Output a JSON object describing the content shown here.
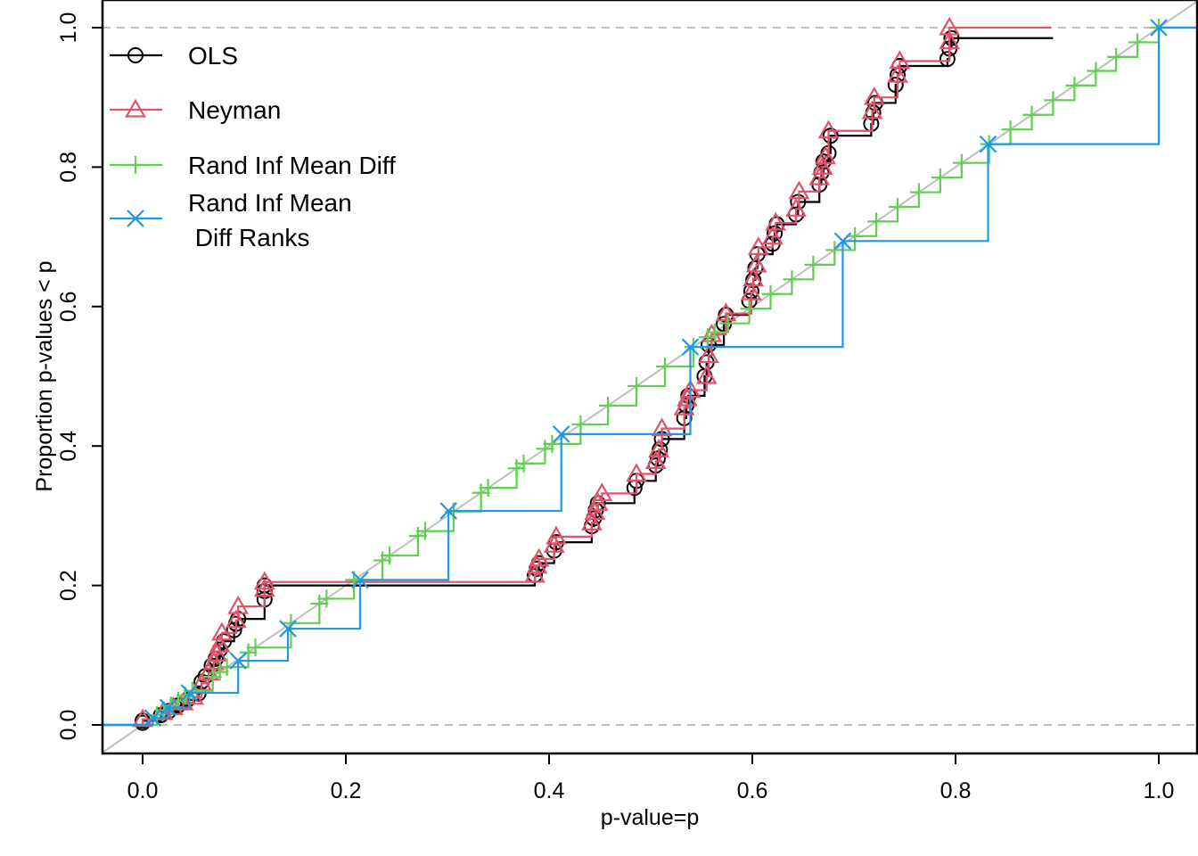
{
  "chart_data": {
    "type": "line",
    "title": "",
    "xlabel": "p-value=p",
    "ylabel": "Proportion p-values < p",
    "xlim": [
      0,
      1
    ],
    "ylim": [
      0,
      1
    ],
    "x_ticks": [
      "0.0",
      "0.2",
      "0.4",
      "0.6",
      "0.8",
      "1.0"
    ],
    "y_ticks": [
      "0.0",
      "0.2",
      "0.4",
      "0.6",
      "0.8",
      "1.0"
    ],
    "x_tick_values": [
      0,
      0.2,
      0.4,
      0.6,
      0.8,
      1.0
    ],
    "y_tick_values": [
      0,
      0.2,
      0.4,
      0.6,
      0.8,
      1.0
    ],
    "reference_lines": {
      "diagonal": {
        "from": [
          0,
          0
        ],
        "to": [
          1,
          1
        ],
        "color": "#bebebe"
      },
      "horizontal_dashed": [
        0,
        1
      ],
      "dashed_color": "#bebebe"
    },
    "legend": {
      "placement": "top-left",
      "entries": [
        {
          "label": "OLS",
          "series": "OLS"
        },
        {
          "label": "Neyman",
          "series": "Neyman"
        },
        {
          "label": "Rand Inf Mean Diff",
          "series": "Rand Inf Mean Diff"
        },
        {
          "label_lines": [
            "Rand Inf Mean",
            " Diff Ranks"
          ],
          "series": "Rand Inf Mean Diff Ranks"
        }
      ]
    },
    "series": [
      {
        "name": "OLS",
        "color": "#000000",
        "marker": "circle",
        "step": true,
        "x": [
          0.0,
          0.0,
          0.018,
          0.026,
          0.035,
          0.044,
          0.055,
          0.058,
          0.062,
          0.068,
          0.072,
          0.076,
          0.08,
          0.09,
          0.092,
          0.094,
          0.12,
          0.12,
          0.12,
          0.386,
          0.388,
          0.39,
          0.405,
          0.407,
          0.442,
          0.444,
          0.446,
          0.448,
          0.484,
          0.486,
          0.505,
          0.507,
          0.509,
          0.511,
          0.533,
          0.535,
          0.537,
          0.553,
          0.555,
          0.557,
          0.572,
          0.574,
          0.597,
          0.599,
          0.601,
          0.603,
          0.605,
          0.62,
          0.622,
          0.624,
          0.643,
          0.645,
          0.666,
          0.668,
          0.67,
          0.675,
          0.677,
          0.717,
          0.719,
          0.721,
          0.741,
          0.743,
          0.745,
          0.792,
          0.794,
          0.796
        ],
        "y": [
          0.003,
          0.006,
          0.014,
          0.02,
          0.028,
          0.036,
          0.045,
          0.062,
          0.07,
          0.085,
          0.095,
          0.108,
          0.12,
          0.136,
          0.145,
          0.152,
          0.18,
          0.192,
          0.2,
          0.215,
          0.224,
          0.232,
          0.25,
          0.262,
          0.285,
          0.296,
          0.308,
          0.318,
          0.34,
          0.35,
          0.372,
          0.382,
          0.395,
          0.41,
          0.44,
          0.458,
          0.472,
          0.5,
          0.52,
          0.545,
          0.575,
          0.588,
          0.608,
          0.622,
          0.638,
          0.655,
          0.675,
          0.69,
          0.705,
          0.718,
          0.732,
          0.75,
          0.775,
          0.792,
          0.808,
          0.82,
          0.845,
          0.862,
          0.878,
          0.892,
          0.918,
          0.932,
          0.945,
          0.955,
          0.97,
          0.985
        ]
      },
      {
        "name": "Neyman",
        "color": "#df536b",
        "marker": "triangle",
        "step": true,
        "x": [
          0.0,
          0.02,
          0.03,
          0.04,
          0.05,
          0.058,
          0.065,
          0.07,
          0.073,
          0.076,
          0.078,
          0.092,
          0.094,
          0.12,
          0.12,
          0.386,
          0.388,
          0.39,
          0.405,
          0.407,
          0.442,
          0.445,
          0.448,
          0.452,
          0.486,
          0.505,
          0.508,
          0.511,
          0.533,
          0.536,
          0.539,
          0.555,
          0.557,
          0.56,
          0.574,
          0.599,
          0.601,
          0.604,
          0.606,
          0.62,
          0.623,
          0.643,
          0.646,
          0.666,
          0.669,
          0.672,
          0.675,
          0.718,
          0.72,
          0.743,
          0.745,
          0.794,
          0.794
        ],
        "y": [
          0.008,
          0.018,
          0.025,
          0.032,
          0.04,
          0.06,
          0.075,
          0.09,
          0.102,
          0.115,
          0.132,
          0.15,
          0.17,
          0.195,
          0.205,
          0.215,
          0.228,
          0.238,
          0.258,
          0.27,
          0.29,
          0.305,
          0.318,
          0.332,
          0.36,
          0.378,
          0.395,
          0.425,
          0.455,
          0.468,
          0.48,
          0.5,
          0.53,
          0.56,
          0.59,
          0.62,
          0.64,
          0.66,
          0.685,
          0.7,
          0.72,
          0.74,
          0.765,
          0.785,
          0.8,
          0.815,
          0.852,
          0.88,
          0.9,
          0.932,
          0.952,
          0.98,
          1.0
        ]
      },
      {
        "name": "Rand Inf Mean Diff",
        "color": "#61d04f",
        "marker": "plus",
        "step": true,
        "x": [
          0.014,
          0.021,
          0.028,
          0.035,
          0.042,
          0.049,
          0.069,
          0.076,
          0.083,
          0.104,
          0.111,
          0.146,
          0.174,
          0.181,
          0.208,
          0.236,
          0.243,
          0.271,
          0.278,
          0.306,
          0.333,
          0.34,
          0.368,
          0.375,
          0.396,
          0.403,
          0.431,
          0.458,
          0.486,
          0.514,
          0.542,
          0.556,
          0.563,
          0.576,
          0.597,
          0.618,
          0.639,
          0.66,
          0.681,
          0.701,
          0.722,
          0.743,
          0.764,
          0.785,
          0.806,
          0.833,
          0.854,
          0.875,
          0.896,
          0.917,
          0.938,
          0.958,
          0.979,
          1.0
        ],
        "y": [
          0.014,
          0.021,
          0.028,
          0.035,
          0.042,
          0.049,
          0.069,
          0.076,
          0.083,
          0.104,
          0.111,
          0.146,
          0.174,
          0.181,
          0.208,
          0.236,
          0.243,
          0.271,
          0.278,
          0.306,
          0.333,
          0.34,
          0.368,
          0.375,
          0.396,
          0.403,
          0.431,
          0.458,
          0.486,
          0.514,
          0.542,
          0.556,
          0.563,
          0.576,
          0.597,
          0.618,
          0.639,
          0.66,
          0.681,
          0.701,
          0.722,
          0.743,
          0.764,
          0.785,
          0.806,
          0.833,
          0.854,
          0.875,
          0.896,
          0.917,
          0.938,
          0.958,
          0.979,
          1.0
        ]
      },
      {
        "name": "Rand Inf Mean Diff Ranks",
        "color": "#2297e6",
        "marker": "x",
        "step": true,
        "x": [
          0.01,
          0.025,
          0.046,
          0.094,
          0.143,
          0.214,
          0.301,
          0.412,
          0.539,
          0.689,
          0.832,
          1.0
        ],
        "y": [
          0.01,
          0.025,
          0.046,
          0.092,
          0.138,
          0.208,
          0.307,
          0.417,
          0.542,
          0.694,
          0.833,
          1.0
        ]
      }
    ]
  }
}
